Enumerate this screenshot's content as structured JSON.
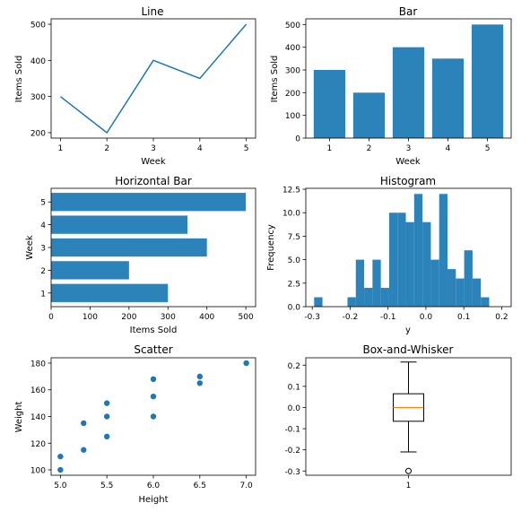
{
  "chart_data": [
    {
      "type": "line",
      "title": "Line",
      "xlabel": "Week",
      "ylabel": "Items Sold",
      "x": [
        1,
        2,
        3,
        4,
        5
      ],
      "values": [
        300,
        200,
        400,
        350,
        500
      ],
      "xticks": [
        "1",
        "2",
        "3",
        "4",
        "5"
      ],
      "yticks": [
        "200",
        "300",
        "400",
        "500"
      ],
      "xlim": [
        0.8,
        5.2
      ],
      "ylim": [
        185,
        515
      ],
      "color": "#1f77b4"
    },
    {
      "type": "bar",
      "title": "Bar",
      "xlabel": "Week",
      "ylabel": "Items Sold",
      "categories": [
        "1",
        "2",
        "3",
        "4",
        "5"
      ],
      "values": [
        300,
        200,
        400,
        350,
        500
      ],
      "yticks": [
        "0",
        "100",
        "200",
        "300",
        "400",
        "500"
      ],
      "ylim": [
        0,
        525
      ],
      "color": "#2b83ba"
    },
    {
      "type": "bar",
      "orientation": "horizontal",
      "title": "Horizontal Bar",
      "xlabel": "Items Sold",
      "ylabel": "Week",
      "categories": [
        "1",
        "2",
        "3",
        "4",
        "5"
      ],
      "values": [
        300,
        200,
        400,
        350,
        500
      ],
      "xticks": [
        "0",
        "100",
        "200",
        "300",
        "400",
        "500"
      ],
      "xlim": [
        0,
        525
      ],
      "color": "#2b83ba"
    },
    {
      "type": "bar",
      "subtype": "histogram",
      "title": "Histogram",
      "xlabel": "y",
      "ylabel": "Frequency",
      "bins": [
        [
          -0.295,
          -0.273,
          1
        ],
        [
          -0.273,
          -0.251,
          0
        ],
        [
          -0.251,
          -0.229,
          0
        ],
        [
          -0.229,
          -0.207,
          0
        ],
        [
          -0.207,
          -0.185,
          1
        ],
        [
          -0.185,
          -0.163,
          5
        ],
        [
          -0.163,
          -0.141,
          2
        ],
        [
          -0.141,
          -0.119,
          5
        ],
        [
          -0.119,
          -0.097,
          2
        ],
        [
          -0.097,
          -0.075,
          10
        ],
        [
          -0.075,
          -0.053,
          10
        ],
        [
          -0.053,
          -0.031,
          9
        ],
        [
          -0.031,
          -0.009,
          12
        ],
        [
          -0.009,
          0.013,
          9
        ],
        [
          0.013,
          0.035,
          5
        ],
        [
          0.035,
          0.057,
          12
        ],
        [
          0.057,
          0.079,
          4
        ],
        [
          0.079,
          0.101,
          3
        ],
        [
          0.101,
          0.123,
          6
        ],
        [
          0.123,
          0.145,
          3
        ],
        [
          0.145,
          0.167,
          1
        ]
      ],
      "xticks": [
        "-0.3",
        "-0.2",
        "-0.1",
        "0.0",
        "0.1",
        "0.2"
      ],
      "xtick_values": [
        -0.3,
        -0.2,
        -0.1,
        0.0,
        0.1,
        0.2
      ],
      "yticks": [
        "0.0",
        "2.5",
        "5.0",
        "7.5",
        "10.0",
        "12.5"
      ],
      "xlim": [
        -0.317,
        0.225
      ],
      "ylim": [
        0,
        12.6
      ],
      "color": "#2b83ba"
    },
    {
      "type": "scatter",
      "title": "Scatter",
      "xlabel": "Height",
      "ylabel": "Weight",
      "points": [
        [
          5.0,
          110
        ],
        [
          5.0,
          100
        ],
        [
          5.25,
          135
        ],
        [
          5.25,
          115
        ],
        [
          5.5,
          150
        ],
        [
          5.5,
          140
        ],
        [
          5.5,
          125
        ],
        [
          6.0,
          168
        ],
        [
          6.0,
          155
        ],
        [
          6.0,
          140
        ],
        [
          6.5,
          170
        ],
        [
          6.5,
          165
        ],
        [
          7.0,
          180
        ]
      ],
      "xticks": [
        "5.0",
        "5.5",
        "6.0",
        "6.5",
        "7.0"
      ],
      "xtick_values": [
        5.0,
        5.5,
        6.0,
        6.5,
        7.0
      ],
      "yticks": [
        "100",
        "120",
        "140",
        "160",
        "180"
      ],
      "ytick_values": [
        100,
        120,
        140,
        160,
        180
      ],
      "xlim": [
        4.9,
        7.1
      ],
      "ylim": [
        96,
        184
      ],
      "color": "#1f77b4"
    },
    {
      "type": "box",
      "title": "Box-and-Whisker",
      "categories": [
        "1"
      ],
      "whisker_low": -0.21,
      "q1": -0.065,
      "median": 0.0,
      "q3": 0.065,
      "whisker_high": 0.215,
      "outliers": [
        -0.3
      ],
      "yticks": [
        "-0.3",
        "-0.2",
        "-0.1",
        "0.0",
        "0.1",
        "0.2"
      ],
      "ytick_values": [
        -0.3,
        -0.2,
        -0.1,
        0.0,
        0.1,
        0.2
      ],
      "ylim": [
        -0.32,
        0.235
      ],
      "median_color": "#ff7f0e"
    }
  ]
}
